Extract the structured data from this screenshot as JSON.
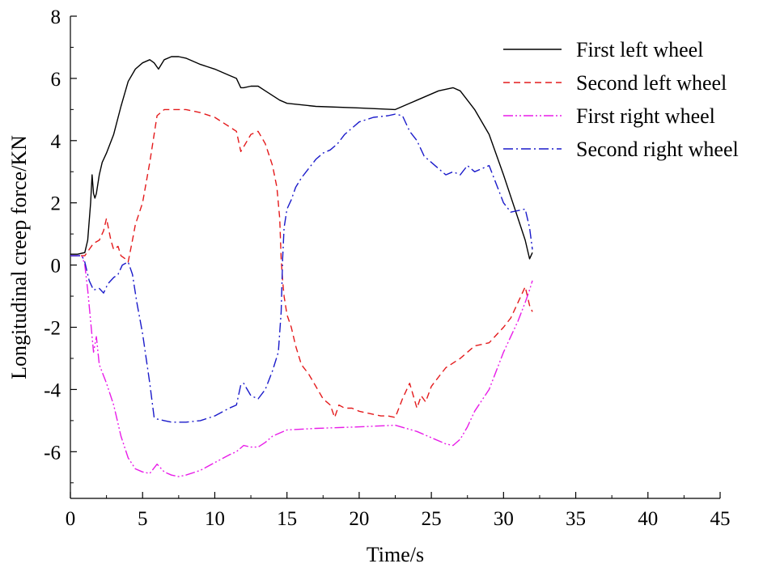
{
  "chart_data": {
    "type": "line",
    "xlabel": "Time/s",
    "ylabel": "Longitudinal creep force/KN",
    "xlim": [
      0,
      45
    ],
    "ylim": [
      -7.5,
      8
    ],
    "x_ticks": [
      0,
      5,
      10,
      15,
      20,
      25,
      30,
      35,
      40,
      45
    ],
    "y_ticks": [
      -6,
      -4,
      -2,
      0,
      2,
      4,
      6,
      8
    ],
    "grid": false,
    "legend_position": "top-right",
    "series": [
      {
        "name": "First left wheel",
        "color": "#000000",
        "dash": "solid",
        "x": [
          0,
          0.5,
          1.0,
          1.2,
          1.4,
          1.5,
          1.6,
          1.7,
          1.8,
          2.0,
          2.2,
          2.5,
          3.0,
          3.5,
          4.0,
          4.5,
          5.0,
          5.5,
          5.8,
          6.1,
          6.5,
          7.0,
          7.5,
          8.0,
          9.0,
          10.0,
          11.0,
          11.5,
          11.8,
          12.0,
          12.5,
          13.0,
          13.5,
          14.0,
          14.5,
          15.0,
          17.0,
          20.0,
          22.5,
          24.0,
          25.5,
          26.5,
          27.0,
          27.5,
          28.0,
          29.0,
          30.0,
          31.0,
          31.5,
          31.8,
          32.0
        ],
        "values": [
          0.35,
          0.35,
          0.4,
          0.8,
          2.0,
          2.9,
          2.3,
          2.15,
          2.3,
          2.9,
          3.3,
          3.6,
          4.2,
          5.1,
          5.9,
          6.3,
          6.5,
          6.6,
          6.5,
          6.3,
          6.6,
          6.7,
          6.7,
          6.65,
          6.45,
          6.3,
          6.1,
          6.0,
          5.7,
          5.7,
          5.75,
          5.75,
          5.6,
          5.45,
          5.3,
          5.2,
          5.1,
          5.05,
          5.0,
          5.3,
          5.6,
          5.7,
          5.6,
          5.3,
          5.0,
          4.2,
          2.9,
          1.5,
          0.8,
          0.2,
          0.4
        ]
      },
      {
        "name": "Second left wheel",
        "color": "#e41a1c",
        "dash": "dashed",
        "x": [
          0,
          1.0,
          1.3,
          1.6,
          2.0,
          2.3,
          2.5,
          2.8,
          3.0,
          3.3,
          3.5,
          3.8,
          4.0,
          4.3,
          4.5,
          5.0,
          5.5,
          6.0,
          6.5,
          7.0,
          8.0,
          9.0,
          10.0,
          11.0,
          11.5,
          11.8,
          12.0,
          12.5,
          13.0,
          13.5,
          14.0,
          14.3,
          14.5,
          14.6,
          14.7,
          14.8,
          14.9,
          15.0,
          15.3,
          15.6,
          16.0,
          16.5,
          17.0,
          17.5,
          18.0,
          18.3,
          18.6,
          19.0,
          19.5,
          20.0,
          20.5,
          21.0,
          21.5,
          22.0,
          22.5,
          23.0,
          23.5,
          24.0,
          24.3,
          24.6,
          25.0,
          25.5,
          26.0,
          27.0,
          27.5,
          28.0,
          29.0,
          30.0,
          30.5,
          31.0,
          31.5,
          31.8,
          32.0
        ],
        "values": [
          0.3,
          0.3,
          0.5,
          0.7,
          0.8,
          1.1,
          1.5,
          0.8,
          0.5,
          0.6,
          0.3,
          0.2,
          0.1,
          0.8,
          1.3,
          2.0,
          3.3,
          4.8,
          5.0,
          5.0,
          5.0,
          4.9,
          4.75,
          4.45,
          4.3,
          3.65,
          3.8,
          4.2,
          4.3,
          3.9,
          3.2,
          2.5,
          1.5,
          0.2,
          -0.5,
          -1.0,
          -1.3,
          -1.6,
          -2.0,
          -2.6,
          -3.2,
          -3.5,
          -3.9,
          -4.3,
          -4.5,
          -4.9,
          -4.5,
          -4.6,
          -4.6,
          -4.7,
          -4.75,
          -4.8,
          -4.85,
          -4.85,
          -4.9,
          -4.3,
          -3.8,
          -4.6,
          -4.2,
          -4.4,
          -3.9,
          -3.6,
          -3.3,
          -3.0,
          -2.8,
          -2.6,
          -2.5,
          -2.0,
          -1.7,
          -1.2,
          -0.7,
          -1.3,
          -1.5
        ]
      },
      {
        "name": "First right wheel",
        "color": "#e81ce8",
        "dash": "dash-dot-dot",
        "x": [
          0,
          0.8,
          1.0,
          1.2,
          1.4,
          1.6,
          1.8,
          2.0,
          2.5,
          3.0,
          3.5,
          4.0,
          4.5,
          5.0,
          5.5,
          6.0,
          6.5,
          7.0,
          7.5,
          8.0,
          9.0,
          10.0,
          11.0,
          11.5,
          12.0,
          12.5,
          13.0,
          13.5,
          14.0,
          15.0,
          17.0,
          20.0,
          22.5,
          24.0,
          25.0,
          26.0,
          26.5,
          27.0,
          27.5,
          28.0,
          29.0,
          30.0,
          31.0,
          31.5,
          31.8,
          32.0
        ],
        "values": [
          0.3,
          0.3,
          0,
          -0.8,
          -1.8,
          -2.8,
          -2.3,
          -3.2,
          -3.8,
          -4.5,
          -5.5,
          -6.2,
          -6.55,
          -6.65,
          -6.7,
          -6.4,
          -6.65,
          -6.75,
          -6.8,
          -6.75,
          -6.6,
          -6.35,
          -6.1,
          -6.0,
          -5.8,
          -5.85,
          -5.85,
          -5.7,
          -5.5,
          -5.3,
          -5.25,
          -5.2,
          -5.15,
          -5.35,
          -5.55,
          -5.75,
          -5.8,
          -5.6,
          -5.2,
          -4.7,
          -4.0,
          -2.8,
          -1.8,
          -1.2,
          -0.8,
          -0.5
        ]
      },
      {
        "name": "Second right wheel",
        "color": "#1a1aca",
        "dash": "dash-dot",
        "x": [
          0,
          0.8,
          1.0,
          1.3,
          1.6,
          2.0,
          2.3,
          2.6,
          3.0,
          3.3,
          3.6,
          4.0,
          4.3,
          4.6,
          5.0,
          5.5,
          5.8,
          6.0,
          6.5,
          7.0,
          8.0,
          9.0,
          10.0,
          11.0,
          11.5,
          11.8,
          12.0,
          12.5,
          13.0,
          13.5,
          14.0,
          14.4,
          14.6,
          14.7,
          14.8,
          15.0,
          15.3,
          15.6,
          16.0,
          16.5,
          17.0,
          17.5,
          18.0,
          18.5,
          19.0,
          19.5,
          20.0,
          21.0,
          22.0,
          22.5,
          23.0,
          23.5,
          24.0,
          24.5,
          25.0,
          25.5,
          26.0,
          26.5,
          27.0,
          27.5,
          28.0,
          28.5,
          29.0,
          29.5,
          30.0,
          30.5,
          31.0,
          31.5,
          31.8,
          32.0
        ],
        "values": [
          0.3,
          0.3,
          0.1,
          -0.5,
          -0.8,
          -0.75,
          -0.9,
          -0.6,
          -0.4,
          -0.3,
          0,
          0.1,
          -0.3,
          -1.2,
          -2.2,
          -3.8,
          -4.9,
          -4.95,
          -5.0,
          -5.05,
          -5.05,
          -5.0,
          -4.85,
          -4.6,
          -4.5,
          -3.85,
          -3.8,
          -4.2,
          -4.3,
          -4.0,
          -3.4,
          -2.8,
          -1.5,
          0.2,
          1.2,
          1.8,
          2.1,
          2.5,
          2.8,
          3.1,
          3.4,
          3.6,
          3.7,
          3.9,
          4.2,
          4.4,
          4.6,
          4.75,
          4.8,
          4.85,
          4.8,
          4.3,
          4.0,
          3.5,
          3.3,
          3.1,
          2.9,
          3.0,
          2.9,
          3.2,
          3.0,
          3.1,
          3.2,
          2.6,
          2.0,
          1.7,
          1.75,
          1.8,
          1.2,
          0.5
        ]
      }
    ]
  }
}
